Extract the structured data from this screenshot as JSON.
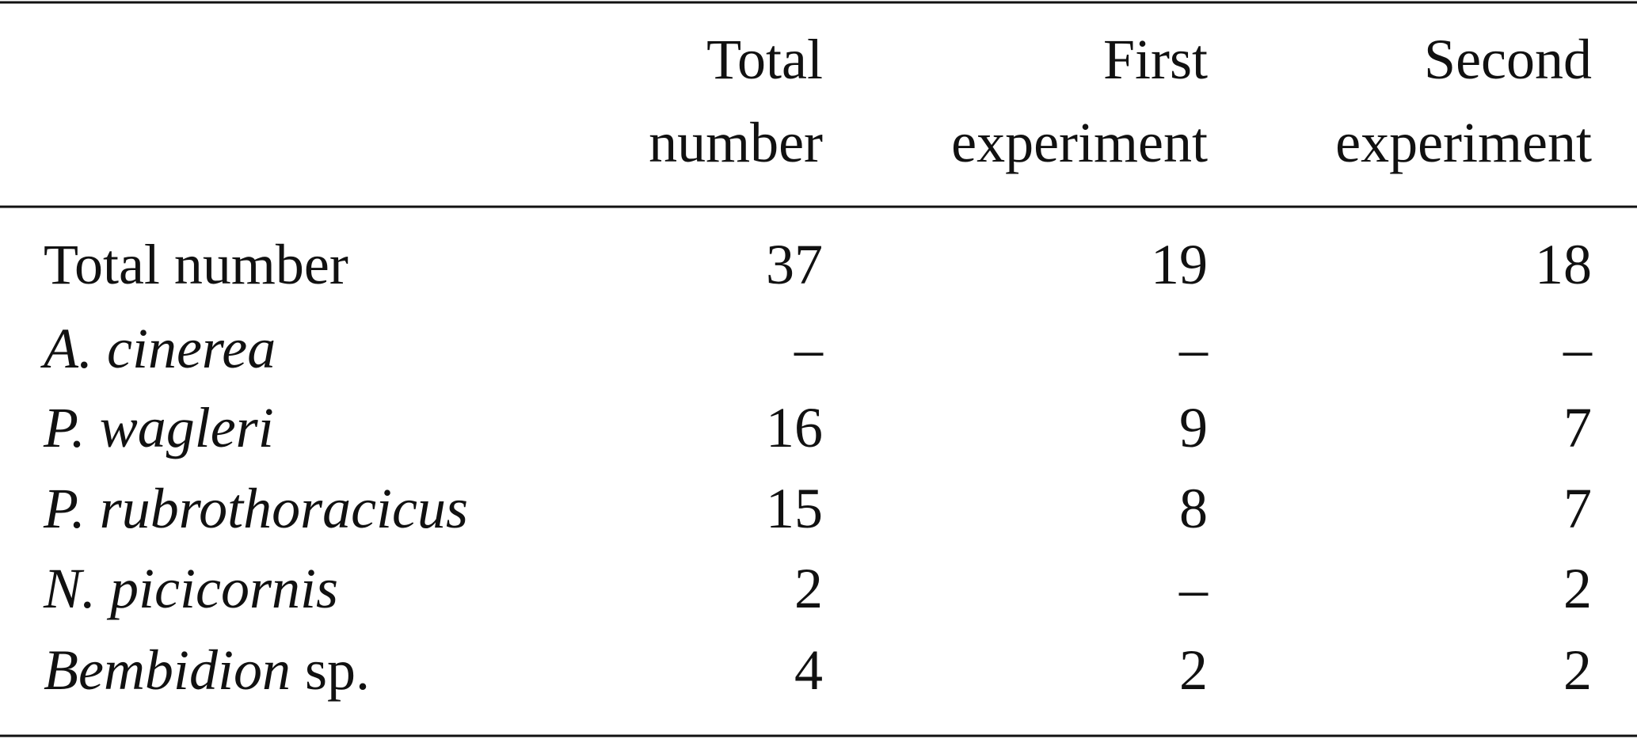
{
  "table": {
    "header": [
      [
        "Total",
        "number"
      ],
      [
        "First",
        "experiment"
      ],
      [
        "Second",
        "experiment"
      ]
    ],
    "rows": [
      {
        "label": "Total number",
        "values": [
          37,
          19,
          18
        ]
      },
      {
        "label_italic": "A. cinerea",
        "values": [
          "–",
          "–",
          "–"
        ]
      },
      {
        "label_italic": "P. wagleri",
        "values": [
          16,
          9,
          7
        ]
      },
      {
        "label_italic": "P. rubrothoracicus",
        "values": [
          15,
          8,
          7
        ]
      },
      {
        "label_italic": "N. picicornis",
        "values": [
          2,
          "–",
          2
        ]
      },
      {
        "label_italic": "Bembidion",
        "label": "sp.",
        "values": [
          4,
          2,
          2
        ]
      }
    ]
  }
}
